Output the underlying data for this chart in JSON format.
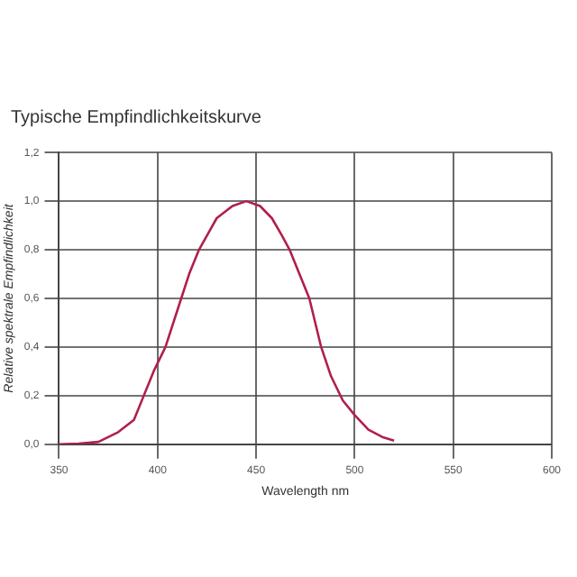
{
  "chart_data": {
    "type": "line",
    "title": "Typische Empfindlichkeitskurve",
    "xlabel": "Wavelength nm",
    "ylabel": "Relative spektrale Empfindlichkeit",
    "x": [
      350,
      360,
      370,
      380,
      388,
      393,
      398,
      404,
      412,
      416,
      421,
      430,
      438,
      445,
      452,
      458,
      463,
      467,
      472,
      477,
      483,
      488,
      494,
      500,
      507,
      514,
      520
    ],
    "series": [
      {
        "color": "#b0204a",
        "values": [
          0,
          0.003,
          0.01,
          0.05,
          0.1,
          0.2,
          0.3,
          0.4,
          0.6,
          0.7,
          0.8,
          0.93,
          0.98,
          1.0,
          0.98,
          0.93,
          0.86,
          0.8,
          0.7,
          0.6,
          0.4,
          0.28,
          0.18,
          0.12,
          0.06,
          0.03,
          0.015
        ]
      }
    ],
    "xlim": [
      350,
      600
    ],
    "xticks": [
      350,
      400,
      450,
      500,
      550,
      600
    ],
    "ylim": [
      0,
      1.2
    ],
    "yticks": [
      {
        "value": 0,
        "label": "0,0"
      },
      {
        "value": 0.2,
        "label": "0,2"
      },
      {
        "value": 0.4,
        "label": "0,4"
      },
      {
        "value": 0.6,
        "label": "0,6"
      },
      {
        "value": 0.8,
        "label": "0,8"
      },
      {
        "value": 1.0,
        "label": "1,0"
      },
      {
        "value": 1.2,
        "label": "1,2"
      }
    ],
    "grid": true,
    "legend": false,
    "marker": "none",
    "line_style": "solid"
  }
}
